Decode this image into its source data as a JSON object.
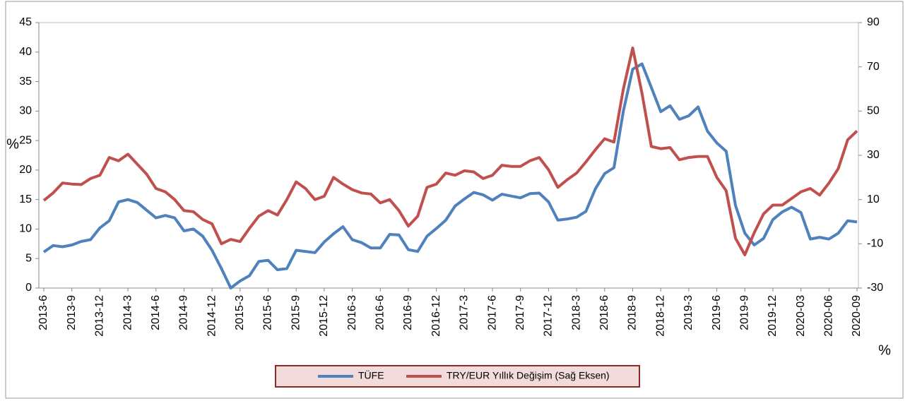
{
  "chart_data": {
    "type": "line",
    "y_label": "%",
    "y2_label": "%",
    "categories": [
      "2013-6",
      null,
      null,
      "2013-9",
      null,
      null,
      "2013-12",
      null,
      null,
      "2014-3",
      null,
      null,
      "2014-6",
      null,
      null,
      "2014-9",
      null,
      null,
      "2014-12",
      null,
      null,
      "2015-3",
      null,
      null,
      "2015-6",
      null,
      null,
      "2015-9",
      null,
      null,
      "2015-12",
      null,
      null,
      "2016-3",
      null,
      null,
      "2016-6",
      null,
      null,
      "2016-9",
      null,
      null,
      "2016-12",
      null,
      null,
      "2017-3",
      null,
      null,
      "2017-6",
      null,
      null,
      "2017-9",
      null,
      null,
      "2017-12",
      null,
      null,
      "2018-3",
      null,
      null,
      "2018-6",
      null,
      null,
      "2018-9",
      null,
      null,
      "2018-12",
      null,
      null,
      "2019-3",
      null,
      null,
      "2019-6",
      null,
      null,
      "2019-9",
      null,
      null,
      "2019-12",
      null,
      null,
      "2020-03",
      null,
      null,
      "2020-06",
      null,
      null,
      "2020-09"
    ],
    "series": [
      {
        "name": "TÜFE",
        "color": "#4f81bd",
        "axis": "y",
        "values": [
          6.1,
          7.2,
          7.0,
          7.3,
          7.9,
          8.2,
          10.2,
          11.4,
          14.6,
          15.0,
          14.5,
          13.2,
          11.9,
          12.3,
          11.9,
          9.7,
          10.0,
          8.8,
          6.4,
          3.3,
          0.0,
          1.2,
          2.1,
          4.5,
          4.7,
          3.1,
          3.3,
          6.4,
          6.2,
          6.0,
          7.8,
          9.2,
          10.4,
          8.2,
          7.7,
          6.8,
          6.8,
          9.1,
          9.0,
          6.5,
          6.2,
          8.8,
          10.1,
          11.5,
          13.9,
          15.1,
          16.2,
          15.8,
          14.9,
          15.9,
          15.6,
          15.3,
          16.0,
          16.1,
          14.6,
          11.5,
          11.7,
          12.0,
          13.0,
          16.8,
          19.4,
          20.4,
          30.0,
          37.1,
          38.0,
          34.0,
          29.9,
          30.9,
          28.6,
          29.2,
          30.7,
          26.6,
          24.6,
          23.2,
          14.0,
          9.3,
          7.3,
          8.4,
          11.6,
          12.9,
          13.7,
          12.8,
          8.3,
          8.6,
          8.3,
          9.3,
          11.4,
          11.2
        ]
      },
      {
        "name": "TRY/EUR Yıllık Değişim (Sağ Eksen)",
        "color": "#c0504d",
        "axis": "y2",
        "values": [
          9.6,
          13,
          17.5,
          17,
          16.8,
          19.5,
          21,
          29,
          27.5,
          30.5,
          26,
          21.5,
          15,
          13.5,
          10,
          5,
          4.5,
          1,
          -1,
          -10,
          -8,
          -9,
          -3,
          2.5,
          5,
          3,
          10,
          18,
          15,
          10,
          11.5,
          20,
          17,
          14.5,
          13,
          12.5,
          8.5,
          10,
          5,
          -2,
          2.5,
          15.5,
          17,
          22,
          21,
          23,
          22.5,
          19.5,
          21,
          25.5,
          25,
          25,
          27.5,
          29,
          23.5,
          15.5,
          19,
          22,
          27,
          32.5,
          37.5,
          36,
          60,
          78.5,
          58,
          34,
          33,
          33.5,
          28,
          29,
          29.5,
          29.5,
          20,
          14,
          -7.5,
          -15,
          -5,
          3.5,
          7.5,
          7.5,
          10.5,
          13.5,
          15,
          12,
          17.5,
          24,
          37,
          41
        ]
      }
    ],
    "ylim": [
      0,
      45
    ],
    "yticks": [
      0,
      5,
      10,
      15,
      20,
      25,
      30,
      35,
      40,
      45
    ],
    "y2lim": [
      -30,
      90
    ],
    "y2ticks": [
      -30,
      -10,
      10,
      30,
      50,
      70,
      90
    ]
  }
}
